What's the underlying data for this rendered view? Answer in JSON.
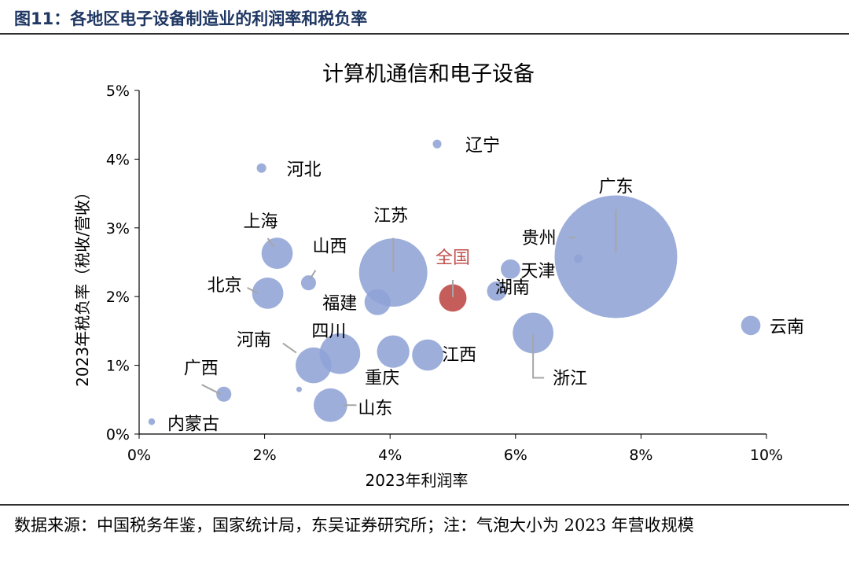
{
  "figure": {
    "title": "图11：各地区电子设备制造业的利润率和税负率",
    "source_note": "数据来源：中国税务年鉴，国家统计局，东吴证券研究所；注：气泡大小为 2023 年营收规模"
  },
  "colors": {
    "bubble": "#8fa3d6",
    "highlight": "#c0504d",
    "label": "#000000",
    "highlight_label": "#c0504d",
    "leader": "#a6a6a6"
  },
  "chart_data": {
    "type": "scatter",
    "subtype": "bubble",
    "title": "计算机通信和电子设备",
    "xlabel": "2023年利润率",
    "ylabel": "2023年税负率（税收/营收）",
    "xlim": [
      0,
      10
    ],
    "ylim": [
      0,
      5
    ],
    "x_ticks": [
      "0%",
      "2%",
      "4%",
      "6%",
      "8%",
      "10%"
    ],
    "y_ticks": [
      "0%",
      "1%",
      "2%",
      "3%",
      "4%",
      "5%"
    ],
    "grid": false,
    "legend": "none",
    "size_meaning": "2023年营收规模 (relative)",
    "points": [
      {
        "name": "内蒙古",
        "x": 0.2,
        "y": 0.18,
        "size": 0.3
      },
      {
        "name": "广西",
        "x": 1.35,
        "y": 0.58,
        "size": 1.5
      },
      {
        "name": "河北",
        "x": 1.95,
        "y": 3.87,
        "size": 0.6
      },
      {
        "name": "北京",
        "x": 2.05,
        "y": 2.05,
        "size": 6.5
      },
      {
        "name": "上海",
        "x": 2.2,
        "y": 2.63,
        "size": 6.5
      },
      {
        "name": "",
        "x": 2.55,
        "y": 0.65,
        "size": 0.2
      },
      {
        "name": "山西",
        "x": 2.7,
        "y": 2.2,
        "size": 1.5
      },
      {
        "name": "河南",
        "x": 2.78,
        "y": 1.0,
        "size": 8.5
      },
      {
        "name": "山东",
        "x": 3.05,
        "y": 0.42,
        "size": 7.5
      },
      {
        "name": "四川",
        "x": 3.2,
        "y": 1.17,
        "size": 11.0
      },
      {
        "name": "福建",
        "x": 3.8,
        "y": 1.92,
        "size": 4.5
      },
      {
        "name": "江苏",
        "x": 4.05,
        "y": 2.35,
        "size": 31.0
      },
      {
        "name": "重庆",
        "x": 4.05,
        "y": 1.2,
        "size": 7.0
      },
      {
        "name": "江西",
        "x": 4.6,
        "y": 1.15,
        "size": 6.5
      },
      {
        "name": "辽宁",
        "x": 4.75,
        "y": 4.22,
        "size": 0.5
      },
      {
        "name": "全国",
        "x": 5.0,
        "y": 1.98,
        "size": 5.0,
        "highlight": true
      },
      {
        "name": "湖南",
        "x": 5.7,
        "y": 2.08,
        "size": 2.5
      },
      {
        "name": "天津",
        "x": 5.92,
        "y": 2.4,
        "size": 2.5
      },
      {
        "name": "浙江",
        "x": 6.28,
        "y": 1.47,
        "size": 11.0
      },
      {
        "name": "贵州",
        "x": 7.0,
        "y": 2.55,
        "size": 0.5
      },
      {
        "name": "广东",
        "x": 7.6,
        "y": 2.58,
        "size": 100.0
      },
      {
        "name": "云南",
        "x": 9.75,
        "y": 1.58,
        "size": 2.5
      }
    ]
  }
}
